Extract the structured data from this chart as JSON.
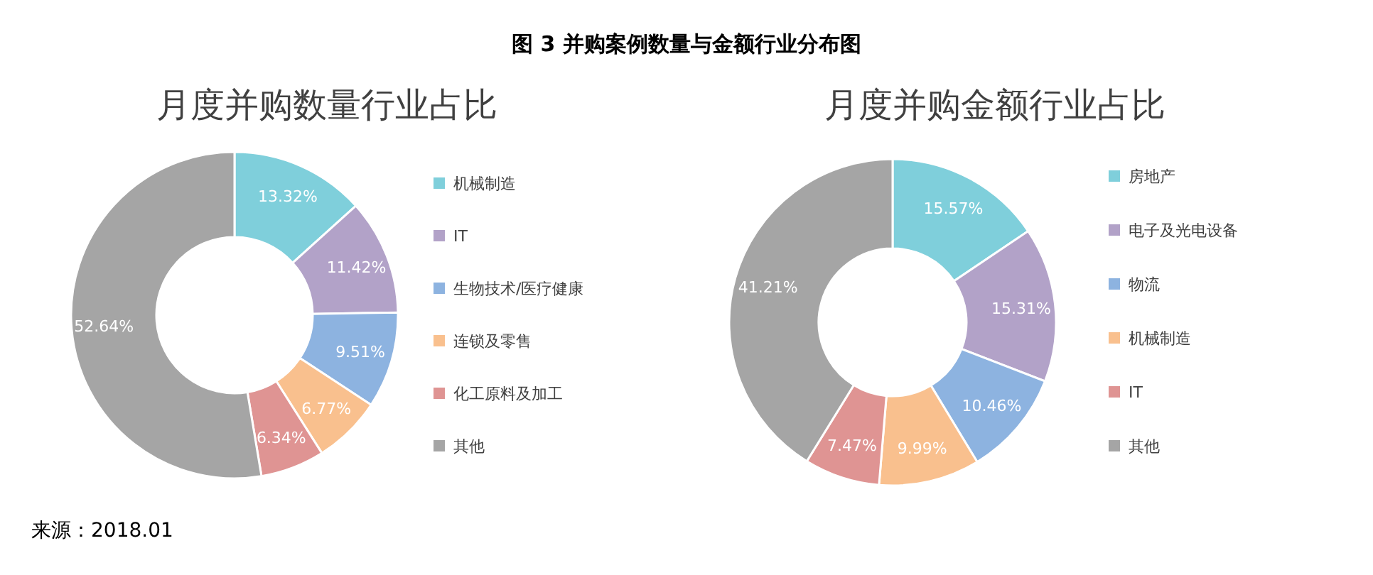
{
  "chart_data": [
    {
      "type": "donut",
      "title": "图 3  并购案例数量与金额行业分布图",
      "subtitle": "月度并购数量行业占比",
      "categories": [
        "机械制造",
        "IT",
        "生物技术/医疗健康",
        "连锁及零售",
        "化工原料及加工",
        "其他"
      ],
      "values": [
        13.32,
        11.42,
        9.51,
        6.77,
        6.34,
        52.64
      ],
      "value_labels": [
        "13.32%",
        "11.42%",
        "9.51%",
        "6.77%",
        "6.34%",
        "52.64%"
      ],
      "colors": [
        "#7fcfdb",
        "#b2a2c8",
        "#8db3e0",
        "#f9c08e",
        "#df9493",
        "#a5a5a5"
      ],
      "legend": "right",
      "annotations": [
        "来源：2018.01"
      ]
    },
    {
      "type": "donut",
      "title": "月度并购金额行业占比",
      "categories": [
        "房地产",
        "电子及光电设备",
        "物流",
        "机械制造",
        "IT",
        "其他"
      ],
      "values": [
        15.57,
        15.31,
        10.46,
        9.99,
        7.47,
        41.21
      ],
      "value_labels": [
        "15.57%",
        "15.31%",
        "10.46%",
        "9.99%",
        "7.47%",
        "41.21%"
      ],
      "colors": [
        "#7fcfdb",
        "#b2a2c8",
        "#8db3e0",
        "#f9c08e",
        "#df9493",
        "#a5a5a5"
      ],
      "legend": "right"
    }
  ]
}
